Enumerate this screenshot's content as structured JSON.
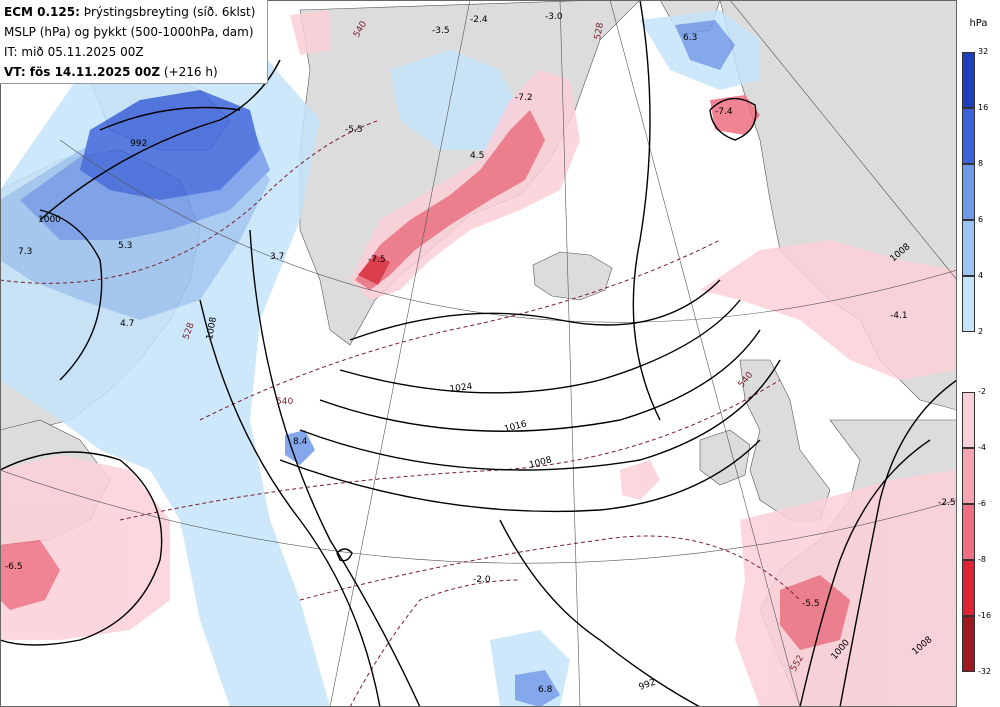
{
  "info": {
    "model": "ECM 0.125:",
    "field": "Þrýstingsbreyting (síð. 6klst)",
    "line2": "MSLP (hPa) og þykkt (500-1000hPa, dam)",
    "init": "IT: mið 05.11.2025 00Z",
    "valid_prefix": "VT: fös 14.11.2025 00Z",
    "valid_suffix": "(+216 h)"
  },
  "legend": {
    "unit": "hPa",
    "rise_ticks": [
      "32",
      "16",
      "8",
      "6",
      "4",
      "2"
    ],
    "fall_ticks": [
      "-2",
      "-4",
      "-6",
      "-8",
      "-16",
      "-32"
    ],
    "rise_colors": [
      "#1f3fbf",
      "#3b64db",
      "#6f9ae8",
      "#9cc4f2",
      "#c4e4fa"
    ],
    "fall_colors": [
      "#fbd0d8",
      "#f7a3b0",
      "#ee6f80",
      "#dc2434",
      "#9e1a23"
    ]
  },
  "map": {
    "colors": {
      "land": "#dcdcdc",
      "sea": "#ffffff",
      "isobar": "#000000",
      "thickness": "#7a1f2c",
      "rise_strong": "#3b64db",
      "rise_light": "#c4e4fa",
      "fall_light": "#fbd0d8",
      "fall_strong": "#ee6f80"
    },
    "isobars": [
      "1024",
      "1016",
      "1008",
      "1000",
      "992",
      "1008",
      "1008",
      "1000",
      "992",
      "1008"
    ],
    "thickness": [
      "528",
      "540",
      "528",
      "540",
      "552",
      "540"
    ],
    "changes": [
      "-2.4",
      "-3.0",
      "-3.5",
      "6.3",
      "-5.5",
      "-7.2",
      "4.5",
      "-7.4",
      "-7.5",
      "7.3",
      "5.3",
      "4.7",
      "3.7",
      "-4.1",
      "8.4",
      "-6.5",
      "-2.0",
      "6.8",
      "-5.5",
      "-2.5"
    ]
  }
}
